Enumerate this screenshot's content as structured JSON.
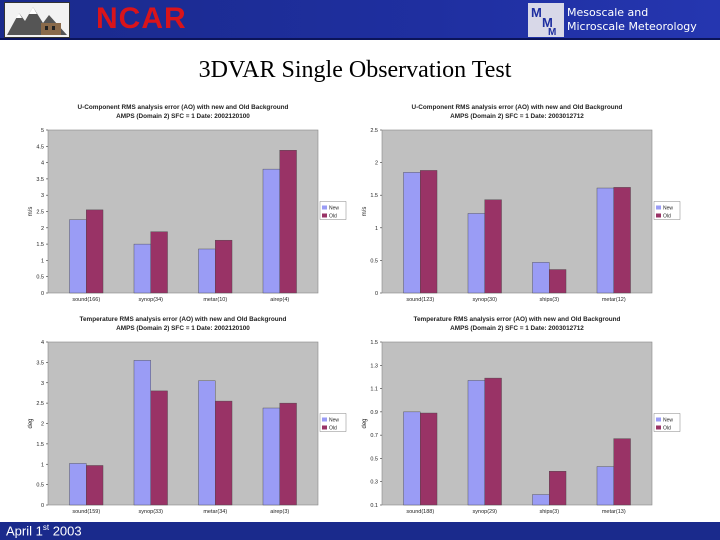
{
  "header": {
    "brand": "NCAR",
    "group_line1": "Mesoscale and",
    "group_line2": "Microscale Meteorology",
    "left_logo_icon": "mountain-logo-icon",
    "right_logo_icon": "mmm-logo-icon",
    "background": "#1f2fa0",
    "brand_color": "#d9141b"
  },
  "slide": {
    "title": "3DVAR Single Observation Test"
  },
  "footer": {
    "date": "April 1",
    "date_sup": "st",
    "date_year": " 2003"
  },
  "legend": {
    "new": "New",
    "old": "Old"
  },
  "colors": {
    "new": "#9a9cf5",
    "old": "#993366",
    "plot_bg": "#c0c0c0"
  },
  "chart_data": [
    {
      "type": "bar",
      "title_line1": "U-Component RMS analysis error (AO) with new and Old Background",
      "title_line2": "AMPS (Domain 2)          SFC = 1     Date: 2002120100",
      "ylabel": "m/s",
      "categories": [
        "sound(166)",
        "synop(34)",
        "metar(10)",
        "airep(4)"
      ],
      "series": [
        {
          "name": "New",
          "values": [
            2.25,
            1.5,
            1.35,
            3.8
          ]
        },
        {
          "name": "Old",
          "values": [
            2.55,
            1.88,
            1.62,
            4.38
          ]
        }
      ],
      "ylim": [
        0,
        5
      ],
      "yticks": [
        "0",
        "0.5",
        "1",
        "1.5",
        "2",
        "2.5",
        "3",
        "3.5",
        "4",
        "4.5",
        "5"
      ],
      "grid": false,
      "legend_position": "right"
    },
    {
      "type": "bar",
      "title_line1": "U-Component RMS analysis error (AO) with new and Old Background",
      "title_line2": "AMPS (Domain 2)          SFC = 1     Date: 2003012712",
      "ylabel": "m/s",
      "categories": [
        "sound(123)",
        "synop(30)",
        "ships(3)",
        "metar(12)"
      ],
      "series": [
        {
          "name": "New",
          "values": [
            1.85,
            1.22,
            0.47,
            1.61
          ]
        },
        {
          "name": "Old",
          "values": [
            1.88,
            1.43,
            0.36,
            1.62
          ]
        }
      ],
      "ylim": [
        0,
        2.5
      ],
      "yticks": [
        "0",
        "0.5",
        "1",
        "1.5",
        "2",
        "2.5"
      ],
      "grid": false,
      "legend_position": "right"
    },
    {
      "type": "bar",
      "title_line1": "Temperature RMS analysis error (AO) with new and Old Background",
      "title_line2": "AMPS (Domain 2)          SFC = 1     Date: 2002120100",
      "ylabel": "deg",
      "categories": [
        "sound(159)",
        "synop(33)",
        "metar(34)",
        "airep(3)"
      ],
      "series": [
        {
          "name": "New",
          "values": [
            1.02,
            3.55,
            3.05,
            2.38
          ]
        },
        {
          "name": "Old",
          "values": [
            0.97,
            2.8,
            2.55,
            2.5
          ]
        }
      ],
      "ylim": [
        0,
        4
      ],
      "yticks": [
        "0",
        "0.5",
        "1",
        "1.5",
        "2",
        "2.5",
        "3",
        "3.5",
        "4"
      ],
      "grid": false,
      "legend_position": "right"
    },
    {
      "type": "bar",
      "title_line1": "Temperature RMS analysis error (AO) with new and Old Background",
      "title_line2": "AMPS (Domain 2)          SFC = 1     Date: 2003012712",
      "ylabel": "deg",
      "categories": [
        "sound(188)",
        "synop(29)",
        "ships(3)",
        "metar(13)"
      ],
      "series": [
        {
          "name": "New",
          "values": [
            0.9,
            1.17,
            0.19,
            0.43
          ]
        },
        {
          "name": "Old",
          "values": [
            0.89,
            1.19,
            0.39,
            0.67
          ]
        }
      ],
      "ylim": [
        0.1,
        1.5
      ],
      "yticks": [
        "0.1",
        "0.3",
        "0.5",
        "0.7",
        "0.9",
        "1.1",
        "1.3",
        "1.5"
      ],
      "tick_values": [
        0.1,
        0.3,
        0.5,
        0.7,
        0.9,
        1.1,
        1.3,
        1.5
      ],
      "grid": false,
      "legend_position": "right"
    }
  ]
}
